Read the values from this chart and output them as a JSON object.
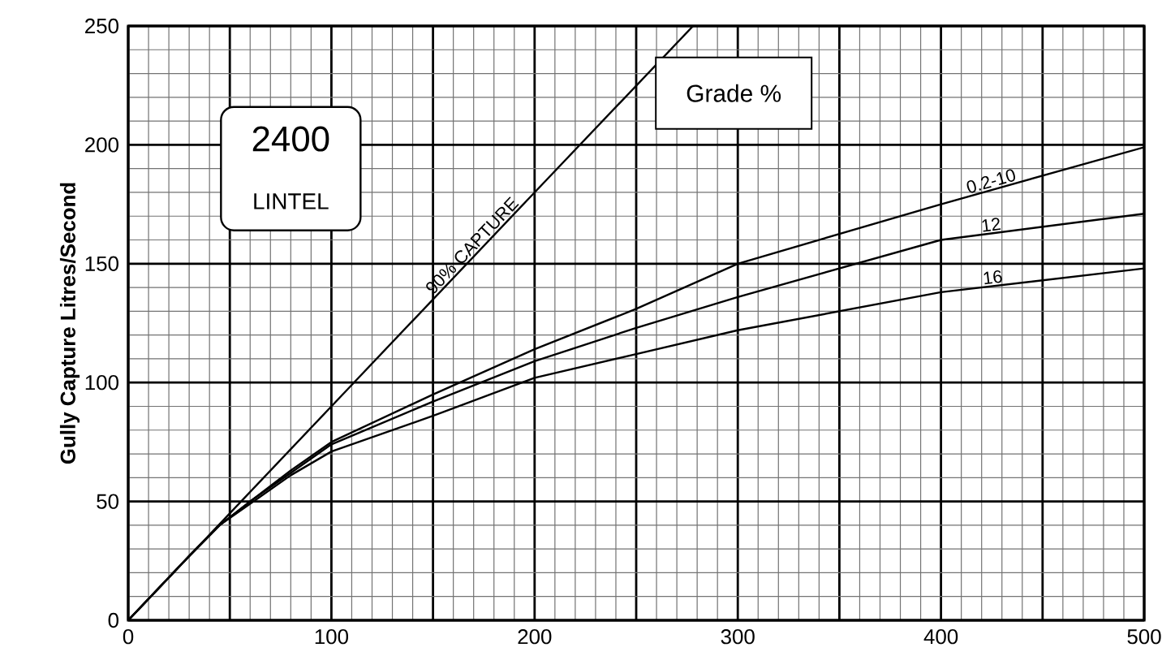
{
  "chart_data": {
    "type": "line",
    "xlabel": null,
    "ylabel": "Gully Capture Litres/Second",
    "legend_title": "Grade %",
    "annotations": [
      "2400",
      "LINTEL"
    ],
    "xlim": [
      0,
      500
    ],
    "ylim": [
      0,
      250
    ],
    "xticks": [
      0,
      {
        "value": 50,
        "label": null
      },
      100,
      {
        "value": 150,
        "label": null
      },
      200,
      {
        "value": 250,
        "label": null
      },
      300,
      {
        "value": 350,
        "label": null
      },
      400,
      {
        "value": 450,
        "label": null
      },
      500
    ],
    "yticks": [
      0,
      50,
      100,
      150,
      200,
      250
    ],
    "grid": true,
    "legend": false,
    "marker": "none",
    "line_style": "solid",
    "series": [
      {
        "name": "90% CAPTURE",
        "color": "#000000",
        "x": [
          0,
          100,
          200,
          278
        ],
        "values": [
          0,
          90,
          180,
          250
        ]
      },
      {
        "name": "0.2-10",
        "color": "#000000",
        "x": [
          0,
          30,
          45,
          60,
          80,
          100,
          150,
          200,
          250,
          300,
          400,
          500
        ],
        "values": [
          0,
          27,
          40,
          50,
          63,
          75,
          95,
          114,
          131,
          150,
          175,
          199
        ]
      },
      {
        "name": "12",
        "color": "#000000",
        "x": [
          0,
          30,
          45,
          60,
          80,
          100,
          150,
          200,
          250,
          300,
          400,
          500
        ],
        "values": [
          0,
          27,
          40,
          50,
          62,
          74,
          92,
          109,
          123,
          136,
          160,
          171
        ]
      },
      {
        "name": "16",
        "color": "#000000",
        "x": [
          0,
          30,
          45,
          60,
          80,
          100,
          150,
          200,
          250,
          300,
          400,
          500
        ],
        "values": [
          0,
          27,
          40,
          49,
          61,
          71,
          86,
          102,
          112,
          122,
          138,
          148
        ]
      }
    ]
  }
}
